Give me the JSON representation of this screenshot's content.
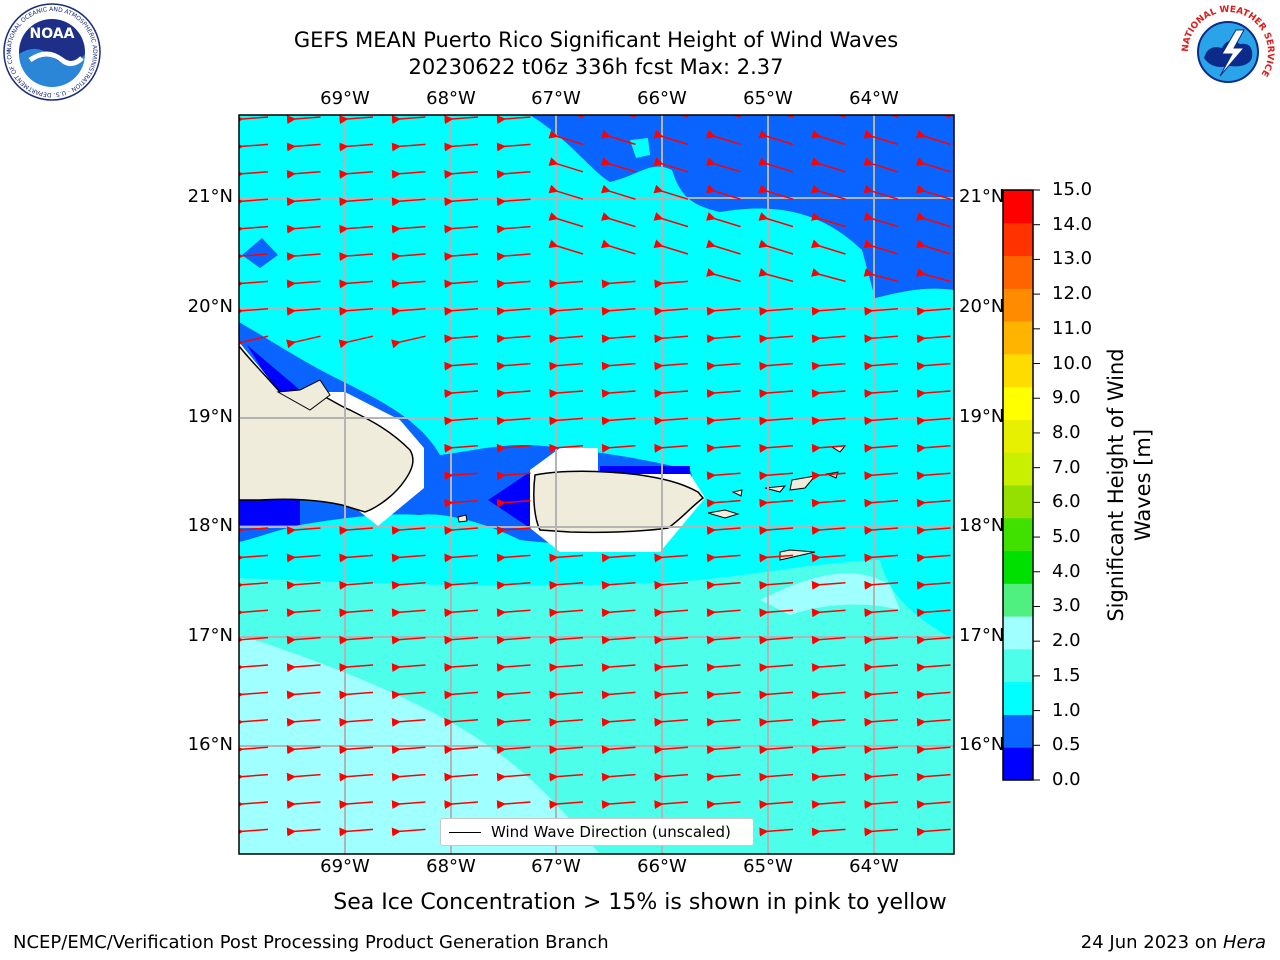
{
  "header": {
    "title_line1": "GEFS MEAN Puerto Rico Significant Height of Wind Waves",
    "title_line2": "20230622 t06z 336h fcst   Max: 2.37"
  },
  "logos": {
    "left": {
      "name": "NOAA",
      "text": "NOAA",
      "ring_text": "NATIONAL OCEANIC AND ATMOSPHERIC ADMINISTRATION · U.S. DEPARTMENT OF COMMERCE"
    },
    "right": {
      "name": "National Weather Service",
      "ring_text": "NATIONAL WEATHER SERVICE"
    }
  },
  "map": {
    "lon_labels": [
      "69°W",
      "68°W",
      "67°W",
      "66°W",
      "65°W",
      "64°W"
    ],
    "lat_labels_left": [
      "21°N",
      "20°N",
      "19°N",
      "18°N",
      "17°N",
      "16°N"
    ],
    "lat_labels_right": [
      "21°N",
      "20°N",
      "19°N",
      "18°N",
      "17°N",
      "16°N"
    ],
    "legend_label": "Wind Wave Direction (unscaled)",
    "arrow_color": "#ff0000",
    "land_color": "#efecdc"
  },
  "colorbar": {
    "label": "Significant Height of Wind Waves [m]",
    "ticks": [
      "15.0",
      "14.0",
      "13.0",
      "12.0",
      "11.0",
      "10.0",
      "9.0",
      "8.0",
      "7.0",
      "6.0",
      "5.0",
      "4.0",
      "3.0",
      "2.0",
      "1.5",
      "1.0",
      "0.5",
      "0.0"
    ],
    "colors_bottom_to_top": [
      "#0000ff",
      "#0a64ff",
      "#00ffff",
      "#4dffea",
      "#a0ffff",
      "#50f080",
      "#00e000",
      "#40e000",
      "#96e000",
      "#c8f000",
      "#e6f000",
      "#ffff00",
      "#ffdc00",
      "#ffb400",
      "#ff8c00",
      "#ff6400",
      "#ff3200",
      "#ff0000"
    ]
  },
  "footer": {
    "note": "Sea Ice Concentration > 15% is shown in pink to yellow",
    "left": "NCEP/EMC/Verification Post Processing Product Generation Branch",
    "right_prefix": "24 Jun 2023 on ",
    "right_host": "Hera"
  }
}
